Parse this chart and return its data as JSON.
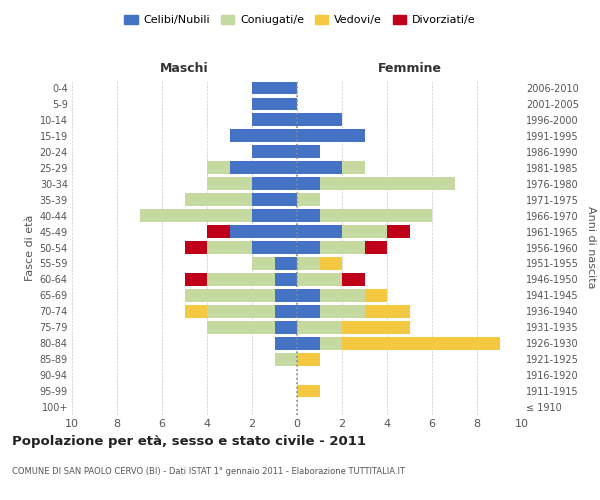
{
  "age_groups": [
    "100+",
    "95-99",
    "90-94",
    "85-89",
    "80-84",
    "75-79",
    "70-74",
    "65-69",
    "60-64",
    "55-59",
    "50-54",
    "45-49",
    "40-44",
    "35-39",
    "30-34",
    "25-29",
    "20-24",
    "15-19",
    "10-14",
    "5-9",
    "0-4"
  ],
  "birth_years": [
    "≤ 1910",
    "1911-1915",
    "1916-1920",
    "1921-1925",
    "1926-1930",
    "1931-1935",
    "1936-1940",
    "1941-1945",
    "1946-1950",
    "1951-1955",
    "1956-1960",
    "1961-1965",
    "1966-1970",
    "1971-1975",
    "1976-1980",
    "1981-1985",
    "1986-1990",
    "1991-1995",
    "1996-2000",
    "2001-2005",
    "2006-2010"
  ],
  "colors": {
    "celibe": "#4472C4",
    "coniugato": "#C5D9A0",
    "vedovo": "#F5C842",
    "divorziato": "#C0001A"
  },
  "maschi": {
    "celibe": [
      0,
      0,
      0,
      0,
      1,
      1,
      1,
      1,
      1,
      1,
      2,
      3,
      2,
      2,
      2,
      3,
      2,
      3,
      2,
      2,
      2
    ],
    "coniugato": [
      0,
      0,
      0,
      1,
      0,
      3,
      3,
      4,
      3,
      1,
      2,
      0,
      5,
      3,
      2,
      1,
      0,
      0,
      0,
      0,
      0
    ],
    "vedovo": [
      0,
      0,
      0,
      0,
      0,
      0,
      1,
      0,
      0,
      0,
      0,
      0,
      0,
      0,
      0,
      0,
      0,
      0,
      0,
      0,
      0
    ],
    "divorziato": [
      0,
      0,
      0,
      0,
      0,
      0,
      0,
      0,
      1,
      0,
      1,
      1,
      0,
      0,
      0,
      0,
      0,
      0,
      0,
      0,
      0
    ]
  },
  "femmine": {
    "nubile": [
      0,
      0,
      0,
      0,
      1,
      0,
      1,
      1,
      0,
      0,
      1,
      2,
      1,
      0,
      1,
      2,
      1,
      3,
      2,
      0,
      0
    ],
    "coniugata": [
      0,
      0,
      0,
      0,
      1,
      2,
      2,
      2,
      2,
      1,
      2,
      2,
      5,
      1,
      6,
      1,
      0,
      0,
      0,
      0,
      0
    ],
    "vedova": [
      0,
      1,
      0,
      1,
      7,
      3,
      2,
      1,
      0,
      1,
      0,
      0,
      0,
      0,
      0,
      0,
      0,
      0,
      0,
      0,
      0
    ],
    "divorziata": [
      0,
      0,
      0,
      0,
      0,
      0,
      0,
      0,
      1,
      0,
      1,
      1,
      0,
      0,
      0,
      0,
      0,
      0,
      0,
      0,
      0
    ]
  },
  "xlim": 10,
  "title": "Popolazione per età, sesso e stato civile - 2011",
  "subtitle": "COMUNE DI SAN PAOLO CERVO (BI) - Dati ISTAT 1° gennaio 2011 - Elaborazione TUTTITALIA.IT",
  "ylabel_left": "Fasce di età",
  "ylabel_right": "Anni di nascita",
  "xlabel_left": "Maschi",
  "xlabel_right": "Femmine",
  "legend_labels": [
    "Celibi/Nubili",
    "Coniugati/e",
    "Vedovi/e",
    "Divorziati/e"
  ],
  "background_color": "#ffffff",
  "grid_color": "#cccccc"
}
